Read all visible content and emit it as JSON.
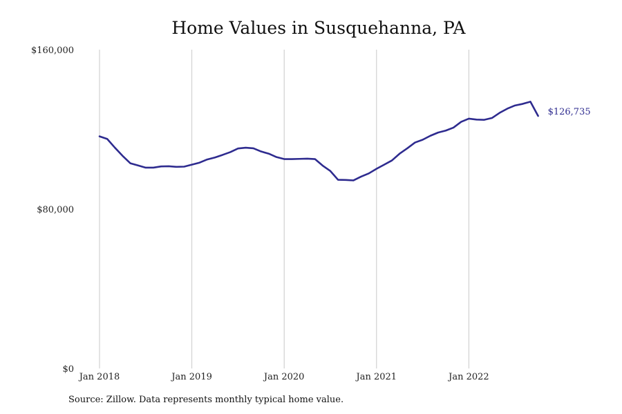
{
  "colors": {
    "line": "#2e2b8f",
    "gridline": "#c8c8c8",
    "text": "#111111"
  },
  "source_note": "Source: Zillow. Data represents monthly typical home value.",
  "chart_data": {
    "type": "line",
    "title": "Home Values in Susquehanna, PA",
    "xlabel": "",
    "ylabel": "",
    "ylim": [
      0,
      160000
    ],
    "y_ticks": [
      {
        "value": 0,
        "label": "$0"
      },
      {
        "value": 80000,
        "label": "$80,000"
      },
      {
        "value": 160000,
        "label": "$160,000"
      }
    ],
    "x_ticks": [
      {
        "date": "2018-01",
        "label": "Jan 2018"
      },
      {
        "date": "2019-01",
        "label": "Jan 2019"
      },
      {
        "date": "2020-01",
        "label": "Jan 2020"
      },
      {
        "date": "2021-01",
        "label": "Jan 2021"
      },
      {
        "date": "2022-01",
        "label": "Jan 2022"
      }
    ],
    "x_gridlines": true,
    "y_gridlines": false,
    "end_label": "$126,735",
    "series": [
      {
        "x": [
          "2018-01",
          "2018-02",
          "2018-03",
          "2018-04",
          "2018-05",
          "2018-06",
          "2018-07",
          "2018-08",
          "2018-09",
          "2018-10",
          "2018-11",
          "2018-12",
          "2019-01",
          "2019-02",
          "2019-03",
          "2019-04",
          "2019-05",
          "2019-06",
          "2019-07",
          "2019-08",
          "2019-09",
          "2019-10",
          "2019-11",
          "2019-12",
          "2020-01",
          "2020-02",
          "2020-03",
          "2020-04",
          "2020-05",
          "2020-06",
          "2020-07",
          "2020-08",
          "2020-09",
          "2020-10",
          "2020-11",
          "2020-12",
          "2021-01",
          "2021-02",
          "2021-03",
          "2021-04",
          "2021-05",
          "2021-06",
          "2021-07",
          "2021-08",
          "2021-09",
          "2021-10",
          "2021-11",
          "2021-12",
          "2022-01",
          "2022-02",
          "2022-03",
          "2022-04",
          "2022-05",
          "2022-06",
          "2022-07",
          "2022-08",
          "2022-09",
          "2022-10"
        ],
        "values": [
          116500,
          115200,
          110800,
          106700,
          103000,
          101900,
          100800,
          100800,
          101400,
          101500,
          101200,
          101300,
          102300,
          103300,
          104900,
          105900,
          107200,
          108600,
          110400,
          110800,
          110500,
          108900,
          107800,
          106100,
          105100,
          105100,
          105200,
          105300,
          105100,
          101800,
          99100,
          94700,
          94600,
          94400,
          96300,
          97900,
          100200,
          102300,
          104400,
          107800,
          110500,
          113400,
          114800,
          116800,
          118400,
          119400,
          120900,
          123800,
          125400,
          124900,
          124800,
          125700,
          128300,
          130400,
          132000,
          132800,
          133900,
          126735
        ]
      }
    ]
  }
}
